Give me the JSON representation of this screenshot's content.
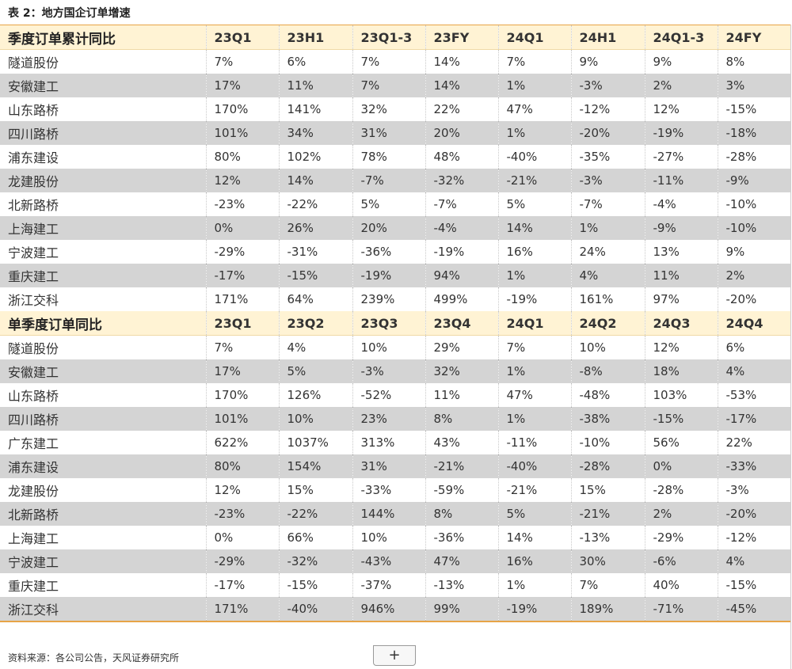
{
  "title": "表 2：地方国企订单增速",
  "sections": [
    {
      "header": [
        "季度订单累计同比",
        "23Q1",
        "23H1",
        "23Q1-3",
        "23FY",
        "24Q1",
        "24H1",
        "24Q1-3",
        "24FY"
      ],
      "rows": [
        [
          "隧道股份",
          "7%",
          "6%",
          "7%",
          "14%",
          "7%",
          "9%",
          "9%",
          "8%"
        ],
        [
          "安徽建工",
          "17%",
          "11%",
          "7%",
          "14%",
          "1%",
          "-3%",
          "2%",
          "3%"
        ],
        [
          "山东路桥",
          "170%",
          "141%",
          "32%",
          "22%",
          "47%",
          "-12%",
          "12%",
          "-15%"
        ],
        [
          "四川路桥",
          "101%",
          "34%",
          "31%",
          "20%",
          "1%",
          "-20%",
          "-19%",
          "-18%"
        ],
        [
          "浦东建设",
          "80%",
          "102%",
          "78%",
          "48%",
          "-40%",
          "-35%",
          "-27%",
          "-28%"
        ],
        [
          "龙建股份",
          "12%",
          "14%",
          "-7%",
          "-32%",
          "-21%",
          "-3%",
          "-11%",
          "-9%"
        ],
        [
          "北新路桥",
          "-23%",
          "-22%",
          "5%",
          "-7%",
          "5%",
          "-7%",
          "-4%",
          "-10%"
        ],
        [
          "上海建工",
          "0%",
          "26%",
          "20%",
          "-4%",
          "14%",
          "1%",
          "-9%",
          "-10%"
        ],
        [
          "宁波建工",
          "-29%",
          "-31%",
          "-36%",
          "-19%",
          "16%",
          "24%",
          "13%",
          "9%"
        ],
        [
          "重庆建工",
          "-17%",
          "-15%",
          "-19%",
          "94%",
          "1%",
          "4%",
          "11%",
          "2%"
        ],
        [
          "浙江交科",
          "171%",
          "64%",
          "239%",
          "499%",
          "-19%",
          "161%",
          "97%",
          "-20%"
        ]
      ]
    },
    {
      "header": [
        "单季度订单同比",
        "23Q1",
        "23Q2",
        "23Q3",
        "23Q4",
        "24Q1",
        "24Q2",
        "24Q3",
        "24Q4"
      ],
      "rows": [
        [
          "隧道股份",
          "7%",
          "4%",
          "10%",
          "29%",
          "7%",
          "10%",
          "12%",
          "6%"
        ],
        [
          "安徽建工",
          "17%",
          "5%",
          "-3%",
          "32%",
          "1%",
          "-8%",
          "18%",
          "4%"
        ],
        [
          "山东路桥",
          "170%",
          "126%",
          "-52%",
          "11%",
          "47%",
          "-48%",
          "103%",
          "-53%"
        ],
        [
          "四川路桥",
          "101%",
          "10%",
          "23%",
          "8%",
          "1%",
          "-38%",
          "-15%",
          "-17%"
        ],
        [
          "广东建工",
          "622%",
          "1037%",
          "313%",
          "43%",
          "-11%",
          "-10%",
          "56%",
          "22%"
        ],
        [
          "浦东建设",
          "80%",
          "154%",
          "31%",
          "-21%",
          "-40%",
          "-28%",
          "0%",
          "-33%"
        ],
        [
          "龙建股份",
          "12%",
          "15%",
          "-33%",
          "-59%",
          "-21%",
          "15%",
          "-28%",
          "-3%"
        ],
        [
          "北新路桥",
          "-23%",
          "-22%",
          "144%",
          "8%",
          "5%",
          "-21%",
          "2%",
          "-20%"
        ],
        [
          "上海建工",
          "0%",
          "66%",
          "10%",
          "-36%",
          "14%",
          "-13%",
          "-29%",
          "-12%"
        ],
        [
          "宁波建工",
          "-29%",
          "-32%",
          "-43%",
          "47%",
          "16%",
          "30%",
          "-6%",
          "4%"
        ],
        [
          "重庆建工",
          "-17%",
          "-15%",
          "-37%",
          "-13%",
          "1%",
          "7%",
          "40%",
          "-15%"
        ],
        [
          "浙江交科",
          "171%",
          "-40%",
          "946%",
          "99%",
          "-19%",
          "189%",
          "-71%",
          "-45%"
        ]
      ]
    }
  ],
  "source": "资料来源：各公司公告，天风证券研究所",
  "add_button_label": "+",
  "colors": {
    "header_bg": "#fff3d4",
    "stripe_bg": "#d4d4d4",
    "border_accent": "#e7a447"
  }
}
